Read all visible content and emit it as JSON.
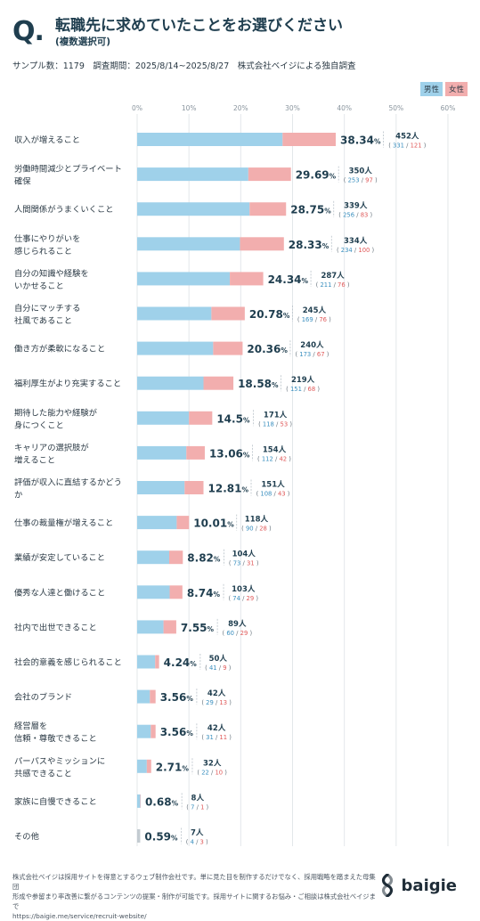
{
  "header": {
    "q_mark": "Q.",
    "title": "転職先に求めていたことをお選びください",
    "subtitle": "(複数選択可)",
    "meta": "サンプル数：1179　調査期間：2025/8/14~2025/8/27　株式会社ベイジによる独自調査"
  },
  "legend": {
    "male": "男性",
    "female": "女性"
  },
  "colors": {
    "male": "#9fd1ea",
    "female": "#f2aeae",
    "pct": "#1f3e4f",
    "count_male": "#3a8fbf",
    "count_female": "#e05a5a",
    "other": "#c3cbd1"
  },
  "chart_data": {
    "type": "bar",
    "orientation": "horizontal",
    "stacked": true,
    "xlim": [
      0,
      60
    ],
    "x_ticks": [
      "0%",
      "10%",
      "20%",
      "30%",
      "40%",
      "50%",
      "60%"
    ],
    "series": [
      {
        "name": "男性"
      },
      {
        "name": "女性"
      }
    ],
    "items": [
      {
        "label": [
          "収入が増えること"
        ],
        "pct": 38.34,
        "pct_text": "38.34",
        "total": "452人",
        "male": 331,
        "female": 121
      },
      {
        "label": [
          "労働時間減少とプライベート",
          "確保"
        ],
        "pct": 29.69,
        "pct_text": "29.69",
        "total": "350人",
        "male": 253,
        "female": 97
      },
      {
        "label": [
          "人間関係がうまくいくこと"
        ],
        "pct": 28.75,
        "pct_text": "28.75",
        "total": "339人",
        "male": 256,
        "female": 83
      },
      {
        "label": [
          "仕事にやりがいを",
          "感じられること"
        ],
        "pct": 28.33,
        "pct_text": "28.33",
        "total": "334人",
        "male": 234,
        "female": 100
      },
      {
        "label": [
          "自分の知識や経験を",
          "いかせること"
        ],
        "pct": 24.34,
        "pct_text": "24.34",
        "total": "287人",
        "male": 211,
        "female": 76
      },
      {
        "label": [
          "自分にマッチする",
          "社風であること"
        ],
        "pct": 20.78,
        "pct_text": "20.78",
        "total": "245人",
        "male": 169,
        "female": 76
      },
      {
        "label": [
          "働き方が柔軟になること"
        ],
        "pct": 20.36,
        "pct_text": "20.36",
        "total": "240人",
        "male": 173,
        "female": 67
      },
      {
        "label": [
          "福利厚生がより充実すること"
        ],
        "pct": 18.58,
        "pct_text": "18.58",
        "total": "219人",
        "male": 151,
        "female": 68
      },
      {
        "label": [
          "期待した能力や経験が",
          "身につくこと"
        ],
        "pct": 14.5,
        "pct_text": "14.5",
        "total": "171人",
        "male": 118,
        "female": 53
      },
      {
        "label": [
          "キャリアの選択肢が",
          "増えること"
        ],
        "pct": 13.06,
        "pct_text": "13.06",
        "total": "154人",
        "male": 112,
        "female": 42
      },
      {
        "label": [
          "評価が収入に直結するかどう",
          "か"
        ],
        "pct": 12.81,
        "pct_text": "12.81",
        "total": "151人",
        "male": 108,
        "female": 43
      },
      {
        "label": [
          "仕事の裁量権が増えること"
        ],
        "pct": 10.01,
        "pct_text": "10.01",
        "total": "118人",
        "male": 90,
        "female": 28
      },
      {
        "label": [
          "業績が安定していること"
        ],
        "pct": 8.82,
        "pct_text": "8.82",
        "total": "104人",
        "male": 73,
        "female": 31
      },
      {
        "label": [
          "優秀な人達と働けること"
        ],
        "pct": 8.74,
        "pct_text": "8.74",
        "total": "103人",
        "male": 74,
        "female": 29
      },
      {
        "label": [
          "社内で出世できること"
        ],
        "pct": 7.55,
        "pct_text": "7.55",
        "total": "89人",
        "male": 60,
        "female": 29
      },
      {
        "label": [
          "社会的意義を感じられること"
        ],
        "pct": 4.24,
        "pct_text": "4.24",
        "total": "50人",
        "male": 41,
        "female": 9
      },
      {
        "label": [
          "会社のブランド"
        ],
        "pct": 3.56,
        "pct_text": "3.56",
        "total": "42人",
        "male": 29,
        "female": 13
      },
      {
        "label": [
          "経営層を",
          "信頼・尊敬できること"
        ],
        "pct": 3.56,
        "pct_text": "3.56",
        "total": "42人",
        "male": 31,
        "female": 11
      },
      {
        "label": [
          "パーパスやミッションに",
          "共感できること"
        ],
        "pct": 2.71,
        "pct_text": "2.71",
        "total": "32人",
        "male": 22,
        "female": 10
      },
      {
        "label": [
          "家族に自慢できること"
        ],
        "pct": 0.68,
        "pct_text": "0.68",
        "total": "8人",
        "male": 7,
        "female": 1
      },
      {
        "label": [
          "その他"
        ],
        "pct": 0.59,
        "pct_text": "0.59",
        "total": "7人",
        "male": 4,
        "female": 3,
        "other": true
      }
    ]
  },
  "footer": {
    "lines": [
      "株式会社ベイジは採用サイトを得意とするウェブ制作会社です。単に見た目を制作するだけでなく、採用戦略を踏まえた母集団",
      "形成や参留まり率改善に繋がるコンテンツの提案・制作が可能です。採用サイトに関するお悩み・ご相談は株式会社ベイジまで",
      "https://baigie.me/service/recruit-website/"
    ]
  },
  "logo": {
    "text": "baigie",
    "icon": "baigie-logo-icon"
  }
}
